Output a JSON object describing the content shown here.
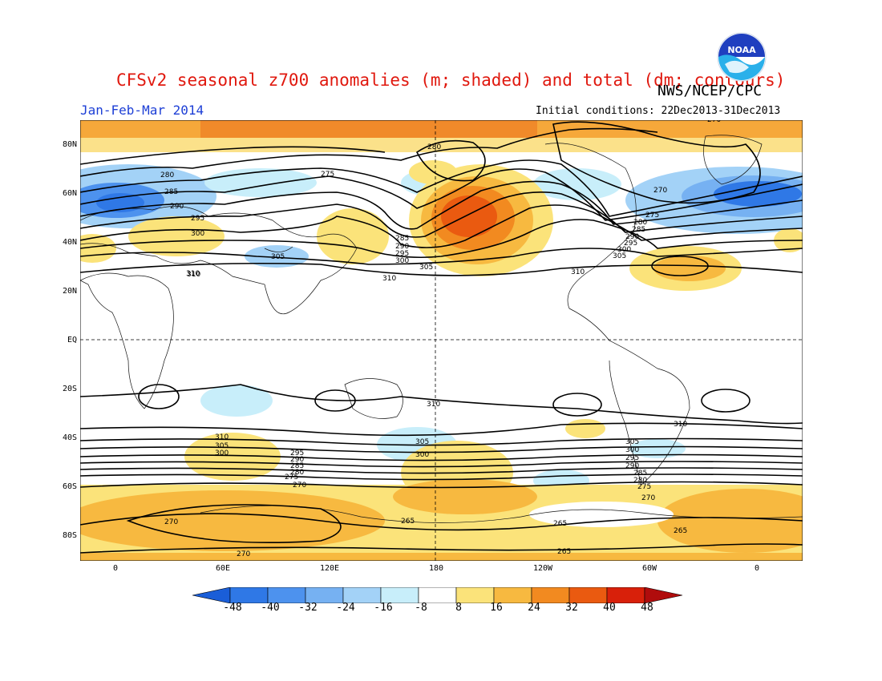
{
  "header": {
    "title": "CFSv2 seasonal z700 anomalies (m; shaded) and total (dm; contours)",
    "agency": "NWS/NCEP/CPC",
    "season": "Jan-Feb-Mar 2014",
    "initial_conditions": "Initial conditions: 22Dec2013-31Dec2013",
    "logo_text": "NOAA"
  },
  "map": {
    "lat_labels": [
      "80N",
      "60N",
      "40N",
      "20N",
      "EQ",
      "20S",
      "40S",
      "60S",
      "80S"
    ],
    "lon_labels": [
      "0",
      "60E",
      "120E",
      "180",
      "120W",
      "60W",
      "0"
    ],
    "contour_labels": [
      "310",
      "305",
      "300",
      "295",
      "290",
      "285",
      "280",
      "275",
      "270",
      "265"
    ],
    "top_label": "270"
  },
  "colorbar": {
    "labels": [
      "-48",
      "-40",
      "-32",
      "-24",
      "-16",
      "-8",
      "8",
      "16",
      "24",
      "32",
      "40",
      "48"
    ],
    "colors": [
      "#1a5ed8",
      "#2f78e6",
      "#4d92ee",
      "#76b1f2",
      "#a3d2f7",
      "#c8eefa",
      "#ffffff",
      "#fbe37a",
      "#f7b940",
      "#f28a20",
      "#ea5a10",
      "#d8200a",
      "#b00c0c"
    ]
  }
}
